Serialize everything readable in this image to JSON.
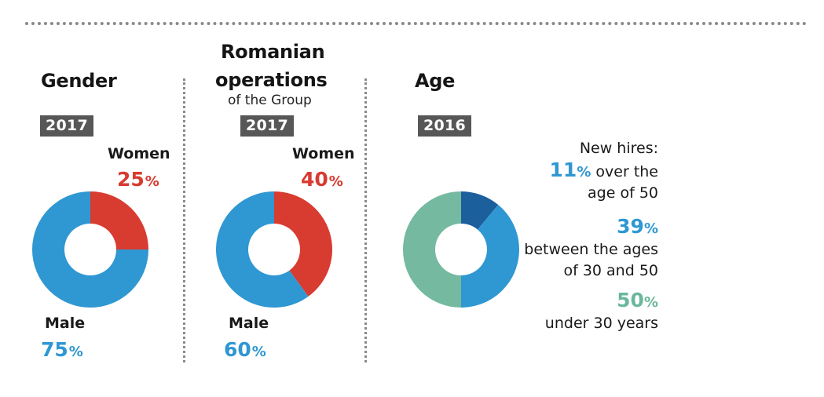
{
  "panels": {
    "gender": {
      "title": "Gender",
      "year": "2017",
      "women_label": "Women",
      "women_value": "25",
      "male_label": "Male",
      "male_value": "75"
    },
    "romania": {
      "title_line1": "Romanian",
      "title_line2": "operations",
      "subtitle": "of the Group",
      "year": "2017",
      "women_label": "Women",
      "women_value": "40",
      "male_label": "Male",
      "male_value": "60"
    },
    "age": {
      "title": "Age",
      "year": "2016",
      "intro": "New hires:",
      "over50_value": "11",
      "over50_text_a": "over the",
      "over50_text_b": "age of 50",
      "mid_value": "39",
      "mid_text_a": "between the ages",
      "mid_text_b": "of 30 and 50",
      "under30_value": "50",
      "under30_text": "under 30 years"
    }
  },
  "percent_sign": "%",
  "colors": {
    "women": "#d83b30",
    "male": "#2f97d2",
    "over50": "#1b5f9c",
    "age30_50": "#2f97d2",
    "under30": "#74b9a0",
    "year_badge": "#575757"
  },
  "chart_data": [
    {
      "type": "pie",
      "title": "Gender",
      "subtitle": "2017",
      "categories": [
        "Women",
        "Male"
      ],
      "values": [
        25,
        75
      ],
      "colors": [
        "#d83b30",
        "#2f97d2"
      ],
      "donut": true
    },
    {
      "type": "pie",
      "title": "Romanian operations of the Group",
      "subtitle": "2017",
      "categories": [
        "Women",
        "Male"
      ],
      "values": [
        40,
        60
      ],
      "colors": [
        "#d83b30",
        "#2f97d2"
      ],
      "donut": true
    },
    {
      "type": "pie",
      "title": "Age",
      "subtitle": "2016",
      "categories": [
        "over the age of 50",
        "between the ages of 30 and 50",
        "under 30 years"
      ],
      "values": [
        11,
        39,
        50
      ],
      "colors": [
        "#1b5f9c",
        "#2f97d2",
        "#74b9a0"
      ],
      "donut": true
    }
  ]
}
